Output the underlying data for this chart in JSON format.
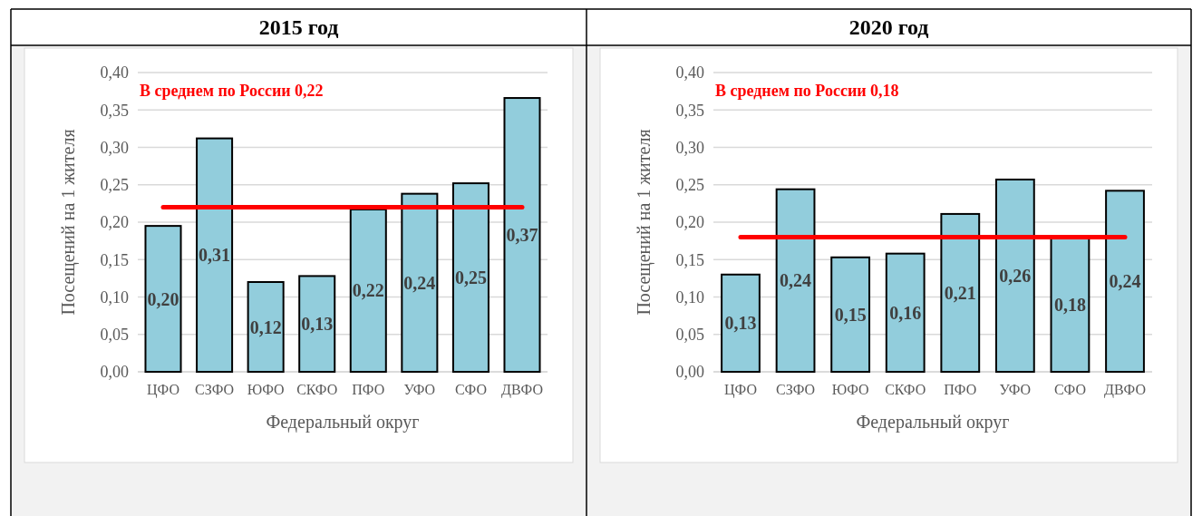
{
  "chart_data": [
    {
      "type": "bar",
      "title": "2015 год",
      "xlabel": "Федеральный округ",
      "ylabel": "Посещений на 1 жителя",
      "categories": [
        "ЦФО",
        "СЗФО",
        "ЮФО",
        "СКФО",
        "ПФО",
        "УФО",
        "СФО",
        "ДВФО"
      ],
      "values": [
        0.195,
        0.312,
        0.12,
        0.128,
        0.217,
        0.238,
        0.252,
        0.366
      ],
      "value_labels": [
        "0,20",
        "0,31",
        "0,12",
        "0,13",
        "0,22",
        "0,24",
        "0,25",
        "0,37"
      ],
      "color": "#92cddc",
      "ylim": [
        0,
        0.4
      ],
      "yticks": [
        {
          "value": 0,
          "label": "0,00"
        },
        {
          "value": 0.05,
          "label": "0,05"
        },
        {
          "value": 0.1,
          "label": "0,10"
        },
        {
          "value": 0.15,
          "label": "0,15"
        },
        {
          "value": 0.2,
          "label": "0,20"
        },
        {
          "value": 0.25,
          "label": "0,25"
        },
        {
          "value": 0.3,
          "label": "0,30"
        },
        {
          "value": 0.35,
          "label": "0,35"
        },
        {
          "value": 0.4,
          "label": "0,40"
        }
      ],
      "grid": "y",
      "ref_lines": [
        {
          "axis": "y",
          "value": 0.22,
          "label": "В среднем по России 0,22",
          "color": "#ff0000"
        }
      ]
    },
    {
      "type": "bar",
      "title": "2020 год",
      "xlabel": "Федеральный округ",
      "ylabel": "Посещений на 1 жителя",
      "categories": [
        "ЦФО",
        "СЗФО",
        "ЮФО",
        "СКФО",
        "ПФО",
        "УФО",
        "СФО",
        "ДВФО"
      ],
      "values": [
        0.13,
        0.244,
        0.153,
        0.158,
        0.211,
        0.257,
        0.18,
        0.242
      ],
      "value_labels": [
        "0,13",
        "0,24",
        "0,15",
        "0,16",
        "0,21",
        "0,26",
        "0,18",
        "0,24"
      ],
      "color": "#92cddc",
      "ylim": [
        0,
        0.4
      ],
      "yticks": [
        {
          "value": 0,
          "label": "0,00"
        },
        {
          "value": 0.05,
          "label": "0,05"
        },
        {
          "value": 0.1,
          "label": "0,10"
        },
        {
          "value": 0.15,
          "label": "0,15"
        },
        {
          "value": 0.2,
          "label": "0,20"
        },
        {
          "value": 0.25,
          "label": "0,25"
        },
        {
          "value": 0.3,
          "label": "0,30"
        },
        {
          "value": 0.35,
          "label": "0,35"
        },
        {
          "value": 0.4,
          "label": "0,40"
        }
      ],
      "grid": "y",
      "ref_lines": [
        {
          "axis": "y",
          "value": 0.18,
          "label": "В среднем по России 0,18",
          "color": "#ff0000"
        }
      ]
    }
  ]
}
